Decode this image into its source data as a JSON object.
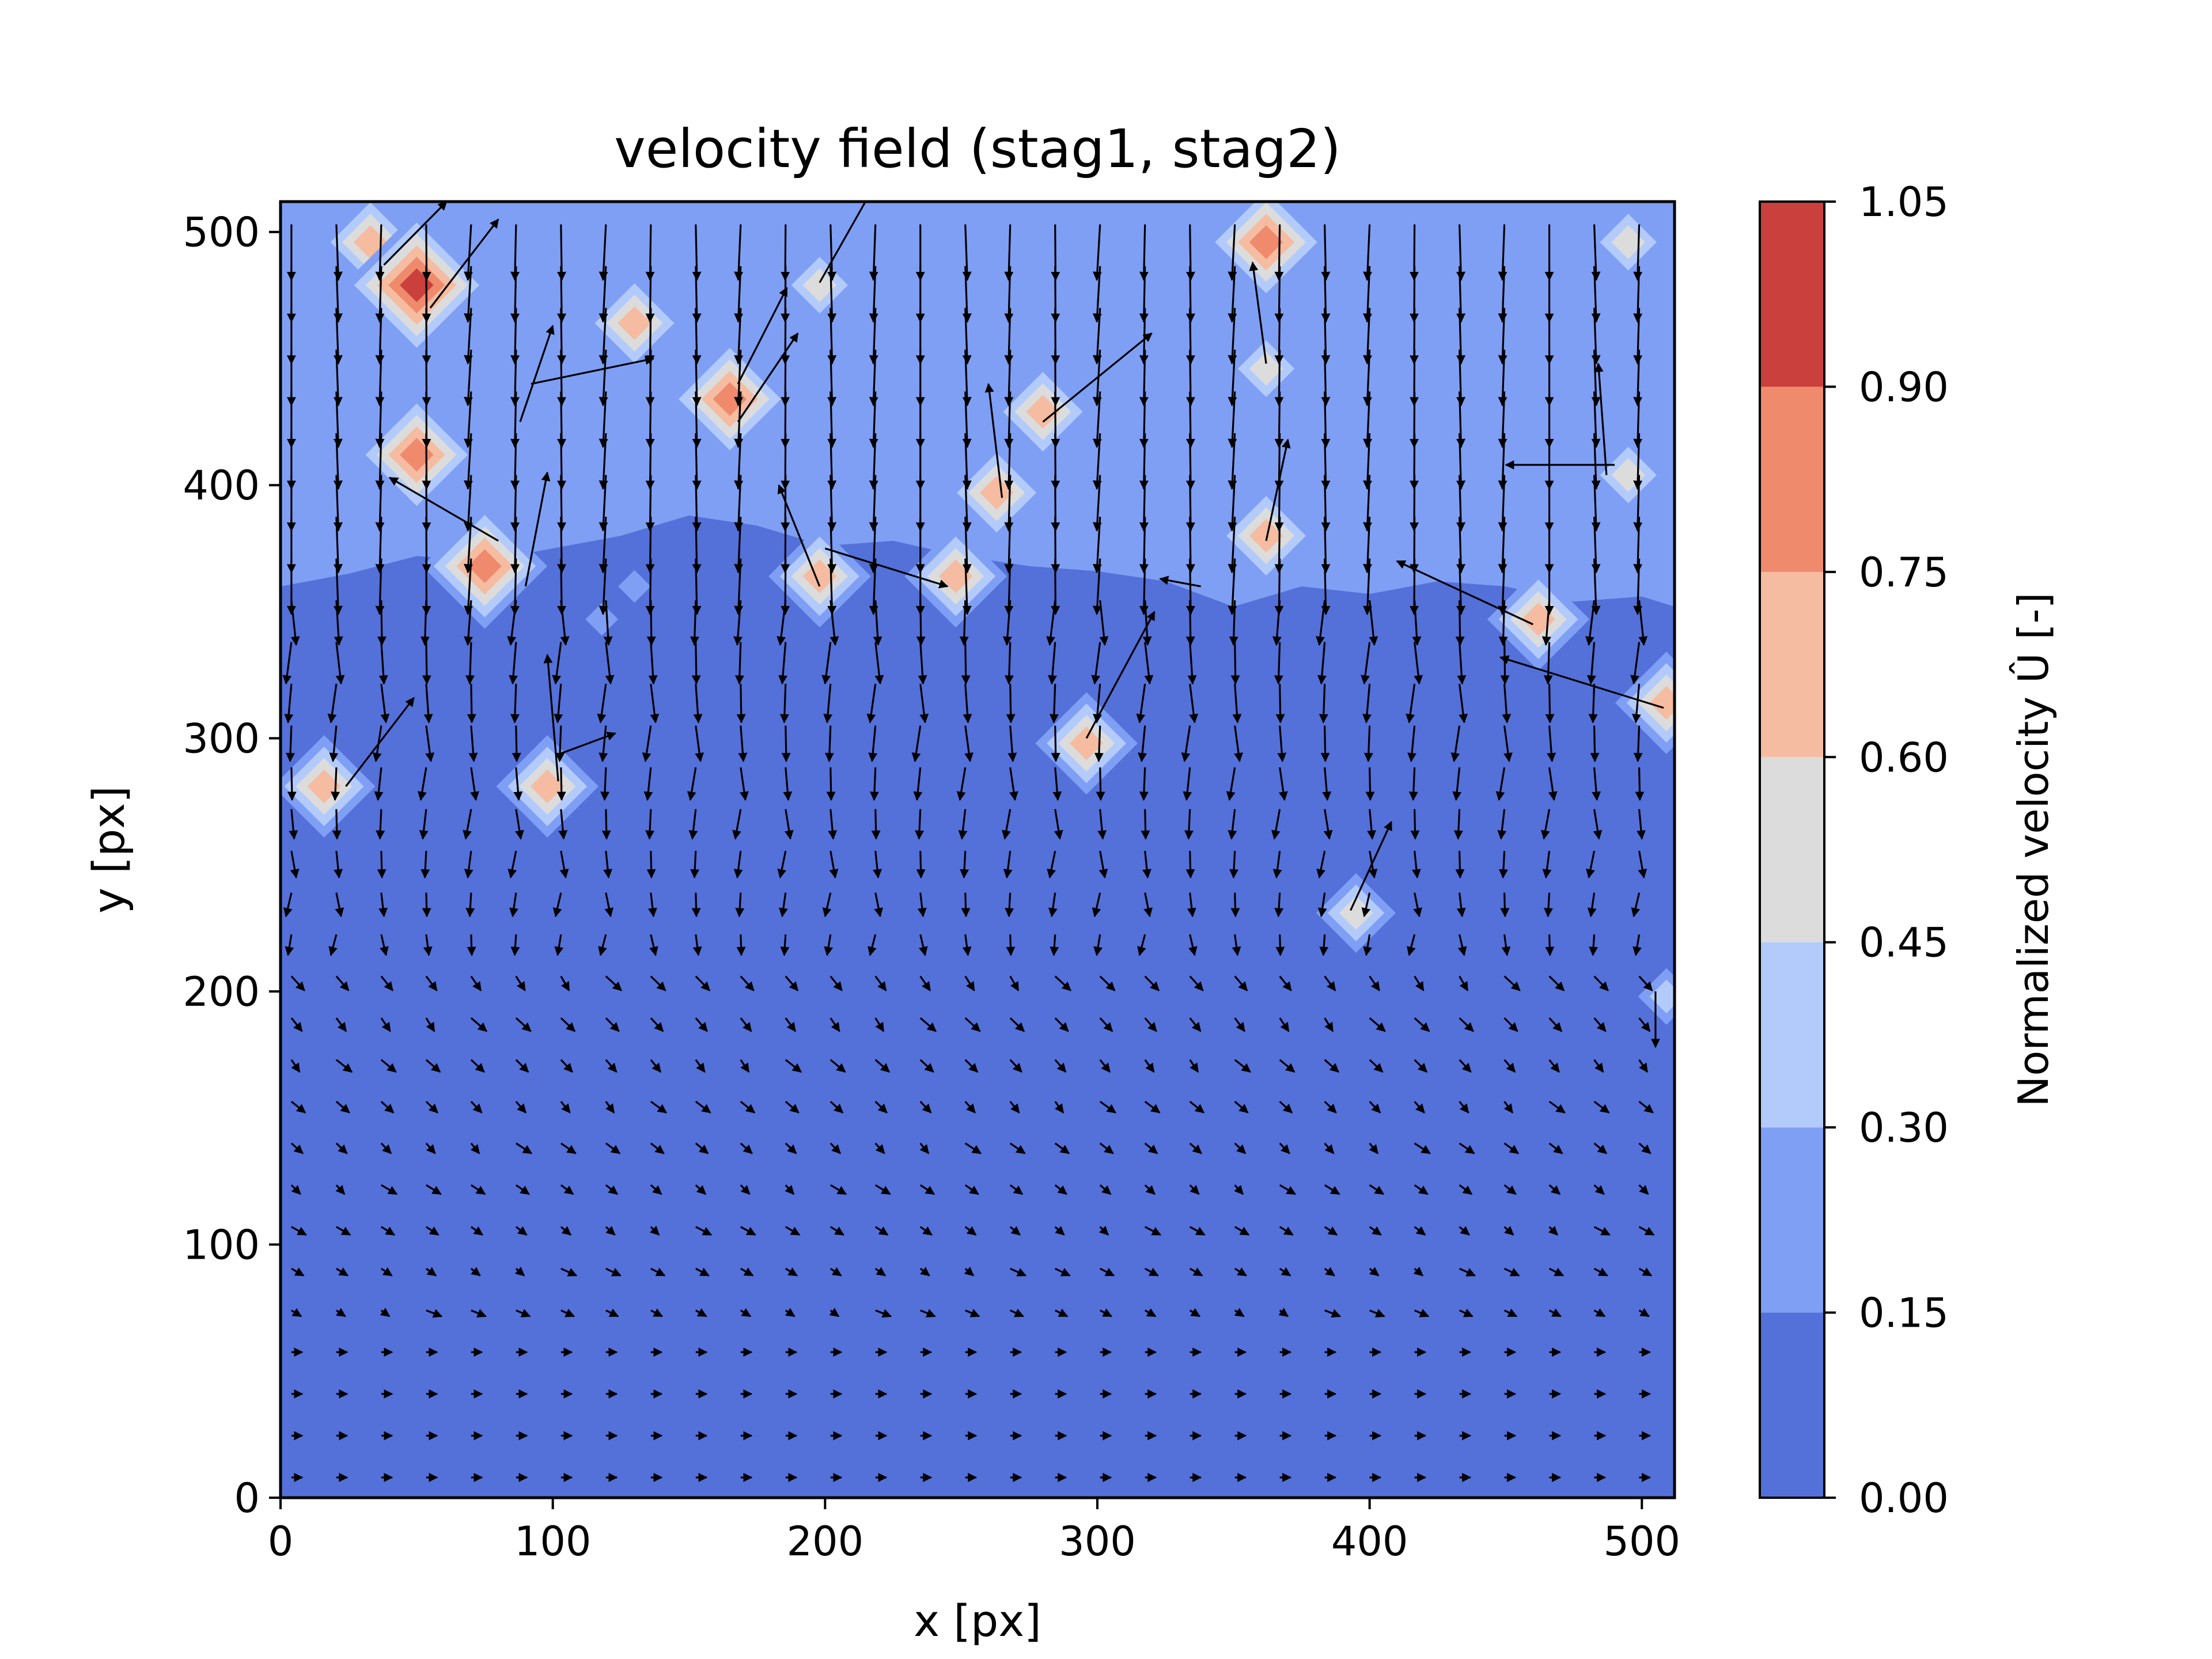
{
  "chart_data": {
    "type": "contourf+quiver",
    "title": "velocity field (stag1, stag2)",
    "xlabel": "x [px]",
    "ylabel": "y [px]",
    "xlim": [
      0,
      512
    ],
    "ylim": [
      0,
      512
    ],
    "xticks": [
      "0",
      "100",
      "200",
      "300",
      "400",
      "500"
    ],
    "yticks": [
      "0",
      "100",
      "200",
      "300",
      "400",
      "500"
    ],
    "colorbar": {
      "label": "Normalized velocity Û [-]",
      "levels": [
        0.0,
        0.15,
        0.3,
        0.45,
        0.6,
        0.75,
        0.9,
        1.05
      ],
      "level_labels": [
        "0.00",
        "0.15",
        "0.30",
        "0.45",
        "0.60",
        "0.75",
        "0.90",
        "1.05"
      ],
      "colors": [
        "#5470d9",
        "#7f9ff5",
        "#b3cbfb",
        "#dcdcdc",
        "#f5bca1",
        "#ef8a6c",
        "#ca403c"
      ]
    },
    "field_regions": {
      "upper_band_value": 0.22,
      "lower_band_value": 0.05,
      "band_boundary_y": [
        [
          0,
          360
        ],
        [
          25,
          365
        ],
        [
          50,
          372
        ],
        [
          75,
          370
        ],
        [
          100,
          375
        ],
        [
          125,
          380
        ],
        [
          150,
          388
        ],
        [
          175,
          384
        ],
        [
          200,
          376
        ],
        [
          225,
          378
        ],
        [
          250,
          372
        ],
        [
          275,
          368
        ],
        [
          300,
          366
        ],
        [
          325,
          362
        ],
        [
          350,
          352
        ],
        [
          375,
          360
        ],
        [
          400,
          357
        ],
        [
          425,
          362
        ],
        [
          450,
          360
        ],
        [
          475,
          354
        ],
        [
          500,
          356
        ],
        [
          512,
          352
        ]
      ]
    },
    "hot_spots": [
      {
        "x": 33,
        "y": 496,
        "value": 0.62
      },
      {
        "x": 50,
        "y": 479,
        "value": 0.95
      },
      {
        "x": 130,
        "y": 464,
        "value": 0.7
      },
      {
        "x": 198,
        "y": 479,
        "value": 0.5
      },
      {
        "x": 165,
        "y": 434,
        "value": 0.75
      },
      {
        "x": 50,
        "y": 412,
        "value": 0.85
      },
      {
        "x": 75,
        "y": 368,
        "value": 0.8
      },
      {
        "x": 198,
        "y": 364,
        "value": 0.72
      },
      {
        "x": 248,
        "y": 364,
        "value": 0.7
      },
      {
        "x": 263,
        "y": 397,
        "value": 0.62
      },
      {
        "x": 280,
        "y": 429,
        "value": 0.65
      },
      {
        "x": 362,
        "y": 446,
        "value": 0.55
      },
      {
        "x": 362,
        "y": 380,
        "value": 0.72
      },
      {
        "x": 362,
        "y": 496,
        "value": 0.85
      },
      {
        "x": 462,
        "y": 347,
        "value": 0.7
      },
      {
        "x": 495,
        "y": 404,
        "value": 0.55
      },
      {
        "x": 495,
        "y": 496,
        "value": 0.5
      },
      {
        "x": 509,
        "y": 314,
        "value": 0.7
      },
      {
        "x": 16,
        "y": 281,
        "value": 0.65
      },
      {
        "x": 98,
        "y": 281,
        "value": 0.72
      },
      {
        "x": 296,
        "y": 298,
        "value": 0.7
      },
      {
        "x": 395,
        "y": 231,
        "value": 0.55
      },
      {
        "x": 509,
        "y": 198,
        "value": 0.4
      }
    ],
    "outlier_vectors": [
      {
        "x": 38,
        "y": 487,
        "u": 23,
        "v": 25
      },
      {
        "x": 55,
        "y": 470,
        "u": 25,
        "v": 35
      },
      {
        "x": 88,
        "y": 425,
        "u": 12,
        "v": 38
      },
      {
        "x": 92,
        "y": 440,
        "u": 45,
        "v": 10
      },
      {
        "x": 168,
        "y": 425,
        "u": 22,
        "v": 35
      },
      {
        "x": 168,
        "y": 440,
        "u": 18,
        "v": 38
      },
      {
        "x": 198,
        "y": 480,
        "u": 20,
        "v": 38
      },
      {
        "x": 280,
        "y": 425,
        "u": 40,
        "v": 35
      },
      {
        "x": 265,
        "y": 395,
        "u": -5,
        "v": 45
      },
      {
        "x": 200,
        "y": 375,
        "u": 45,
        "v": -15
      },
      {
        "x": 198,
        "y": 360,
        "u": -15,
        "v": 40
      },
      {
        "x": 90,
        "y": 360,
        "u": 8,
        "v": 45
      },
      {
        "x": 80,
        "y": 378,
        "u": -40,
        "v": 25
      },
      {
        "x": 362,
        "y": 378,
        "u": 8,
        "v": 40
      },
      {
        "x": 362,
        "y": 448,
        "u": -5,
        "v": 40
      },
      {
        "x": 460,
        "y": 345,
        "u": -50,
        "v": 25
      },
      {
        "x": 490,
        "y": 408,
        "u": -40,
        "v": 0
      },
      {
        "x": 508,
        "y": 312,
        "u": -60,
        "v": 20
      },
      {
        "x": 24,
        "y": 281,
        "u": 25,
        "v": 35
      },
      {
        "x": 103,
        "y": 294,
        "u": 20,
        "v": 8
      },
      {
        "x": 102,
        "y": 283,
        "u": -4,
        "v": 50
      },
      {
        "x": 296,
        "y": 300,
        "u": 25,
        "v": 50
      },
      {
        "x": 393,
        "y": 232,
        "u": 15,
        "v": 35
      },
      {
        "x": 338,
        "y": 360,
        "u": -15,
        "v": 3
      },
      {
        "x": 505,
        "y": 200,
        "u": 0,
        "v": -22
      },
      {
        "x": 487,
        "y": 404,
        "u": -3,
        "v": 44
      }
    ]
  }
}
